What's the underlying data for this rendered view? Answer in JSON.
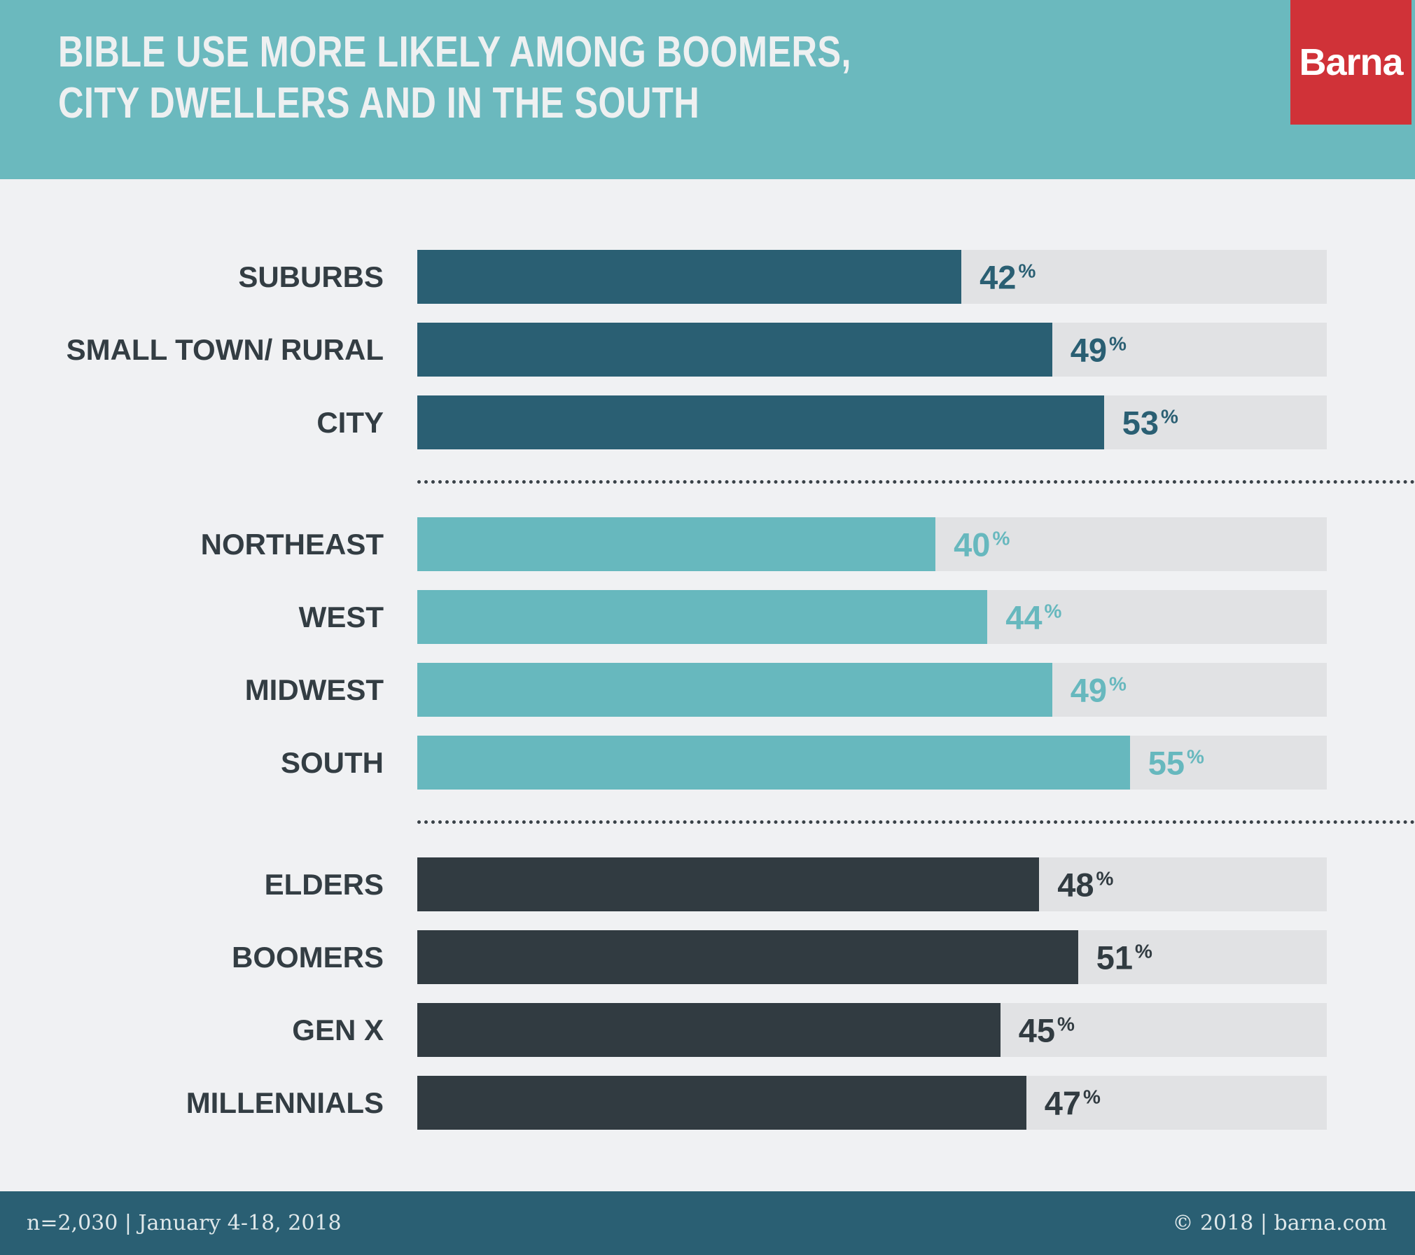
{
  "header": {
    "title_line1": "BIBLE USE MORE LIKELY AMONG BOOMERS,",
    "title_line2": "CITY DWELLERS AND IN THE SOUTH",
    "logo_text": "Barna",
    "background_color": "#6BB9BE",
    "title_color": "#EEF0F1",
    "logo_color": "#D03238"
  },
  "chart_data": {
    "type": "bar",
    "orientation": "horizontal",
    "title": "BIBLE USE MORE LIKELY AMONG BOOMERS, CITY DWELLERS AND IN THE SOUTH",
    "value_unit": "%",
    "track_full_value": 70.2,
    "track_color": "#E1E2E4",
    "grid": false,
    "legend": false,
    "groups": [
      {
        "name": "community-type",
        "color": "#2A5F73",
        "categories": [
          "SUBURBS",
          "SMALL TOWN/ RURAL",
          "CITY"
        ],
        "values": [
          42,
          49,
          53
        ]
      },
      {
        "name": "region",
        "color": "#67B8BE",
        "categories": [
          "NORTHEAST",
          "WEST",
          "MIDWEST",
          "SOUTH"
        ],
        "values": [
          40,
          44,
          49,
          55
        ]
      },
      {
        "name": "generation",
        "color": "#313B41",
        "categories": [
          "ELDERS",
          "BOOMERS",
          "GEN X",
          "MILLENNIALS"
        ],
        "values": [
          48,
          51,
          45,
          47
        ]
      }
    ]
  },
  "footer": {
    "left_text": "n=2,030 | January 4-18, 2018",
    "right_text": "© 2018 | barna.com",
    "background_color": "#2A5F73"
  }
}
